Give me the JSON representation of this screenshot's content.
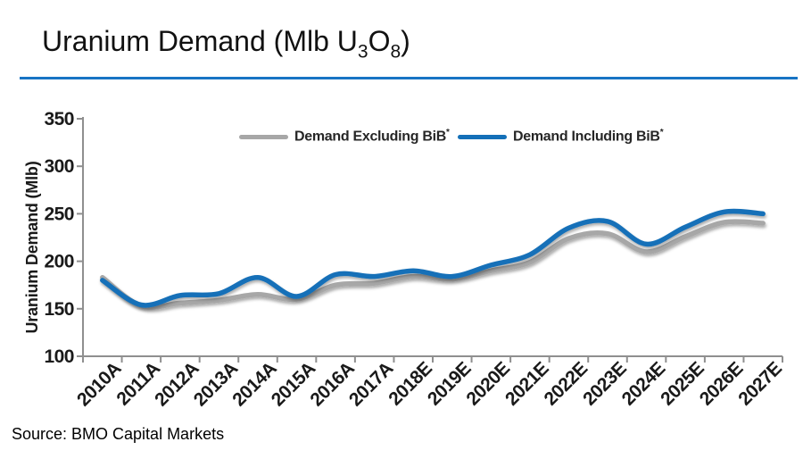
{
  "page": {
    "background": "#ffffff"
  },
  "header": {
    "title_pre": "Uranium Demand (Mlb U",
    "title_sub1": "3",
    "title_mid": "O",
    "title_sub2": "8",
    "title_post": ")",
    "rule_color": "#1774c4"
  },
  "legend": {
    "items": [
      {
        "label": "Demand Excluding BiB",
        "sup": "*",
        "color": "#a7a7a7"
      },
      {
        "label": "Demand Including BiB",
        "sup": "*",
        "color": "#1470b8"
      }
    ]
  },
  "source": {
    "text": "Source: BMO Capital Markets"
  },
  "chart_data": {
    "type": "line",
    "title": "Uranium Demand (Mlb U3O8)",
    "ylabel": "Uranium Demand (Mlb)",
    "xlabel": "",
    "ylim": [
      100,
      350
    ],
    "yticks": [
      100,
      150,
      200,
      250,
      300,
      350
    ],
    "grid": false,
    "smooth": true,
    "legend_position": "top-center",
    "axis_color": "#8f8f8f",
    "categories": [
      "2010A",
      "2011A",
      "2012A",
      "2013A",
      "2014A",
      "2015A",
      "2016A",
      "2017A",
      "2018E",
      "2019E",
      "2020E",
      "2021E",
      "2022E",
      "2023E",
      "2024E",
      "2025E",
      "2026E",
      "2027E"
    ],
    "series": [
      {
        "name": "Demand Excluding BiB*",
        "color": "#a7a7a7",
        "values": [
          183,
          153,
          156,
          159,
          165,
          160,
          175,
          177,
          184,
          181,
          190,
          199,
          224,
          229,
          210,
          226,
          241,
          240
        ]
      },
      {
        "name": "Demand Including BiB*",
        "color": "#1470b8",
        "values": [
          180,
          154,
          164,
          166,
          183,
          163,
          186,
          184,
          190,
          184,
          196,
          207,
          235,
          242,
          218,
          236,
          252,
          250
        ]
      }
    ]
  }
}
